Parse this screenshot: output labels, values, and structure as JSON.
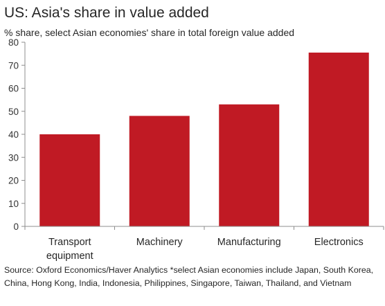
{
  "chart_data": {
    "type": "bar",
    "title": "US: Asia's share in value added",
    "subtitle": "% share, select Asian economies' share in total foreign value added",
    "xlabel": "",
    "ylabel": "",
    "categories": [
      [
        "Transport",
        "equipment"
      ],
      [
        "Machinery"
      ],
      [
        "Manufacturing"
      ],
      [
        "Electronics"
      ]
    ],
    "values": [
      40,
      48,
      53,
      75.5
    ],
    "ylim": [
      0,
      80
    ],
    "yticks": [
      "0",
      "10",
      "20",
      "30",
      "40",
      "50",
      "60",
      "70",
      "80"
    ],
    "grid": false,
    "legend": "none",
    "bar_color": "#c01a24",
    "footnote": "Source: Oxford Economics/Haver Analytics *select Asian economies include Japan, South Korea, China, Hong Kong, India, Indonesia, Philippines, Singapore, Taiwan, Thailand, and Vietnam"
  }
}
